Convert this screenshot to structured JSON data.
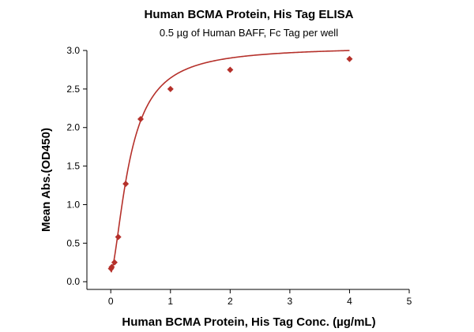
{
  "chart_data": {
    "type": "scatter",
    "title": "Human BCMA Protein, His Tag ELISA",
    "subtitle": "0.5 µg of Human BAFF, Fc Tag per well",
    "xlabel": "Human BCMA Protein, His Tag Conc. (µg/mL)",
    "ylabel": "Mean Abs.(OD450)",
    "xlim": [
      -0.4,
      5
    ],
    "ylim": [
      -0.1,
      3.0
    ],
    "xticks": [
      0,
      1,
      2,
      3,
      4,
      5
    ],
    "xtick_labels": [
      "0",
      "1",
      "2",
      "3",
      "4",
      "5"
    ],
    "yticks": [
      0.0,
      0.5,
      1.0,
      1.5,
      2.0,
      2.5,
      3.0
    ],
    "ytick_labels": [
      "0.0",
      "0.5",
      "1.0",
      "1.5",
      "2.0",
      "2.5",
      "3.0"
    ],
    "grid": false,
    "legend": "none",
    "series": [
      {
        "marker": "diamond",
        "color": "#b5302a",
        "x": [
          0.004,
          0.016,
          0.0625,
          0.125,
          0.25,
          0.5,
          1,
          2,
          4
        ],
        "y": [
          0.17,
          0.19,
          0.25,
          0.58,
          1.27,
          2.11,
          2.5,
          2.75,
          2.89
        ]
      }
    ],
    "fit_curve": {
      "type": "4PL",
      "color": "#b5302a",
      "bottom": 0.12,
      "top": 3.05,
      "ec50": 0.32,
      "hill": 1.6
    }
  }
}
